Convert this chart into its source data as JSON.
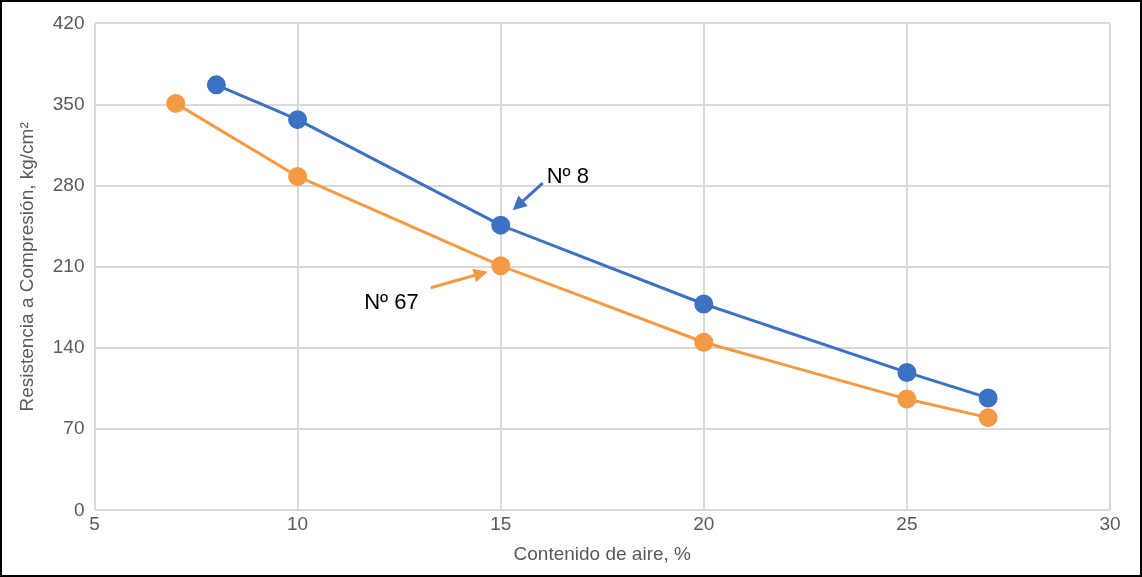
{
  "chart_data": {
    "type": "line",
    "xlabel": "Contenido de aire, %",
    "ylabel": "Resistencia a Compresión, kg/cm²",
    "xlim": [
      5,
      30
    ],
    "xticks": [
      5,
      10,
      15,
      20,
      25,
      30
    ],
    "ylim": [
      0,
      420
    ],
    "yticks": [
      0,
      70,
      140,
      210,
      280,
      350,
      420
    ],
    "grid": true,
    "legend": false,
    "marker": "circle",
    "line_style": "solid",
    "series": [
      {
        "name": "Nº 8",
        "color": "#3d72c2",
        "x": [
          8,
          10,
          15,
          20,
          25,
          27
        ],
        "values": [
          367,
          337,
          246,
          178,
          119,
          97
        ]
      },
      {
        "name": "Nº 67",
        "color": "#f39a45",
        "x": [
          7,
          10,
          15,
          20,
          25,
          27
        ],
        "values": [
          351,
          288,
          211,
          145,
          96,
          80
        ]
      }
    ]
  }
}
